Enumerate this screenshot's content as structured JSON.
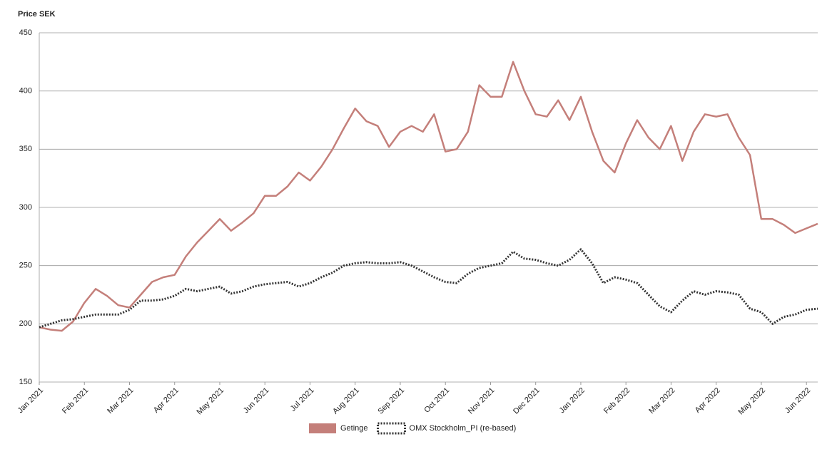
{
  "chart_data": {
    "type": "line",
    "title": "Price SEK",
    "x": [
      0,
      0.25,
      0.5,
      0.75,
      1,
      1.25,
      1.5,
      1.75,
      2,
      2.25,
      2.5,
      2.75,
      3,
      3.25,
      3.5,
      3.75,
      4,
      4.25,
      4.5,
      4.75,
      5,
      5.25,
      5.5,
      5.75,
      6,
      6.25,
      6.5,
      6.75,
      7,
      7.25,
      7.5,
      7.75,
      8,
      8.25,
      8.5,
      8.75,
      9,
      9.25,
      9.5,
      9.75,
      10,
      10.25,
      10.5,
      10.75,
      11,
      11.25,
      11.5,
      11.75,
      12,
      12.25,
      12.5,
      12.75,
      13,
      13.25,
      13.5,
      13.75,
      14,
      14.25,
      14.5,
      14.75,
      15,
      15.25,
      15.5,
      15.75,
      16,
      16.25,
      16.5,
      16.75,
      17,
      17.25
    ],
    "series": [
      {
        "name": "Getinge",
        "color": "#c47f7a",
        "values": [
          197,
          195,
          194,
          202,
          218,
          230,
          224,
          216,
          214,
          225,
          236,
          240,
          242,
          258,
          270,
          280,
          290,
          280,
          287,
          295,
          310,
          310,
          318,
          330,
          323,
          335,
          350,
          368,
          385,
          374,
          370,
          352,
          365,
          370,
          365,
          380,
          348,
          350,
          365,
          405,
          395,
          395,
          425,
          400,
          380,
          378,
          392,
          375,
          395,
          365,
          340,
          330,
          355,
          375,
          360,
          350,
          370,
          340,
          365,
          380,
          378,
          380,
          360,
          345,
          290,
          290,
          285,
          278,
          282,
          286
        ]
      },
      {
        "name": "OMX Stockholm_PI (re-based)",
        "color": "#333333",
        "values": [
          197,
          200,
          203,
          204,
          206,
          208,
          208,
          208,
          212,
          220,
          220,
          221,
          224,
          230,
          228,
          230,
          232,
          226,
          228,
          232,
          234,
          235,
          236,
          232,
          235,
          240,
          244,
          250,
          252,
          253,
          252,
          252,
          253,
          250,
          245,
          240,
          236,
          235,
          243,
          248,
          250,
          252,
          262,
          256,
          255,
          252,
          250,
          255,
          264,
          252,
          235,
          240,
          238,
          235,
          225,
          215,
          210,
          220,
          228,
          225,
          228,
          227,
          225,
          213,
          210,
          200,
          206,
          208,
          212,
          213
        ]
      }
    ],
    "xlim": [
      0,
      17.25
    ],
    "xticks": [
      {
        "value": 0,
        "label": "Jan 2021"
      },
      {
        "value": 1,
        "label": "Feb 2021"
      },
      {
        "value": 2,
        "label": "Mar 2021"
      },
      {
        "value": 3,
        "label": "Apr 2021"
      },
      {
        "value": 4,
        "label": "May 2021"
      },
      {
        "value": 5,
        "label": "Jun 2021"
      },
      {
        "value": 6,
        "label": "Jul 2021"
      },
      {
        "value": 7,
        "label": "Aug 2021"
      },
      {
        "value": 8,
        "label": "Sep 2021"
      },
      {
        "value": 9,
        "label": "Oct 2021"
      },
      {
        "value": 10,
        "label": "Nov 2021"
      },
      {
        "value": 11,
        "label": "Dec 2021"
      },
      {
        "value": 12,
        "label": "Jan 2022"
      },
      {
        "value": 13,
        "label": "Feb 2022"
      },
      {
        "value": 14,
        "label": "Mar 2022"
      },
      {
        "value": 15,
        "label": "Apr 2022"
      },
      {
        "value": 16,
        "label": "May 2022"
      },
      {
        "value": 17,
        "label": "Jun 2022"
      }
    ],
    "ylim": [
      150,
      450
    ],
    "yticks": [
      150,
      200,
      250,
      300,
      350,
      400,
      450
    ],
    "grid": true
  }
}
